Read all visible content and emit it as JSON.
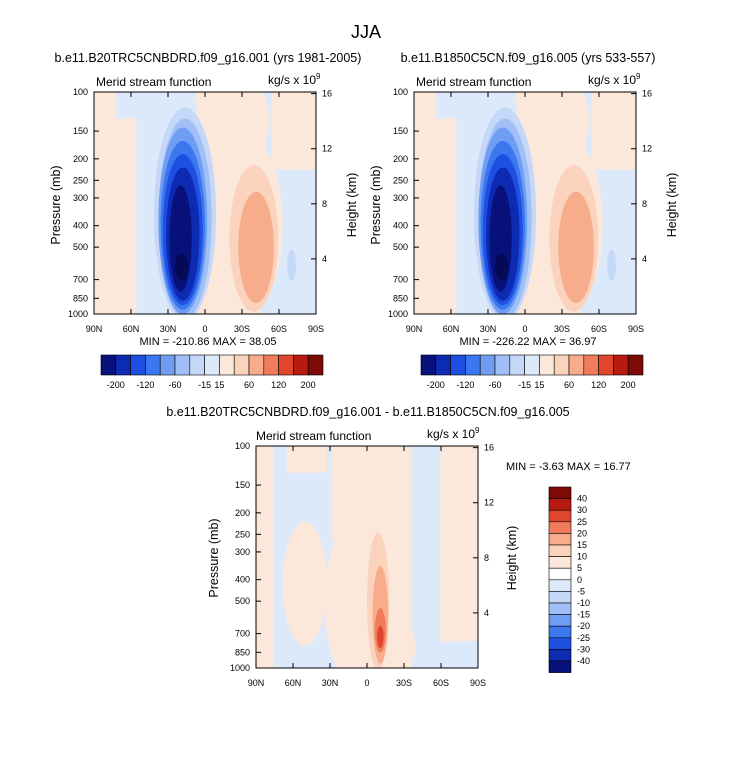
{
  "figure_title": "JJA",
  "chart_data": [
    {
      "type": "heatmap",
      "title": "b.e11.B20TRC5CNBDRD.f09_g16.001 (yrs 1981-2005)",
      "subtitle_left": "Merid stream function",
      "units_base": "kg/s x 10",
      "units_exp": "9",
      "ylabel": "Pressure (mb)",
      "ylabel_right": "Height (km)",
      "x_ticks": [
        "90N",
        "60N",
        "30N",
        "0",
        "30S",
        "60S",
        "90S"
      ],
      "y_ticks": [
        "100",
        "150",
        "200",
        "250",
        "300",
        "400",
        "500",
        "700",
        "850",
        "1000"
      ],
      "y_ticks_right": [
        "16",
        "12",
        "8",
        "4"
      ],
      "stats": "MIN = -210.86  MAX = 38.05",
      "min": -210.86,
      "max": 38.05,
      "colorbar_labels": [
        "-200",
        "-120",
        "-60",
        "-15",
        "15",
        "60",
        "120",
        "200"
      ]
    },
    {
      "type": "heatmap",
      "title": "b.e11.B1850C5CN.f09_g16.005 (yrs 533-557)",
      "subtitle_left": "Merid stream function",
      "units_base": "kg/s x 10",
      "units_exp": "9",
      "ylabel": "Pressure (mb)",
      "ylabel_right": "Height (km)",
      "x_ticks": [
        "90N",
        "60N",
        "30N",
        "0",
        "30S",
        "60S",
        "90S"
      ],
      "y_ticks": [
        "100",
        "150",
        "200",
        "250",
        "300",
        "400",
        "500",
        "700",
        "850",
        "1000"
      ],
      "y_ticks_right": [
        "16",
        "12",
        "8",
        "4"
      ],
      "stats": "MIN = -226.22  MAX = 36.97",
      "min": -226.22,
      "max": 36.97,
      "colorbar_labels": [
        "-200",
        "-120",
        "-60",
        "-15",
        "15",
        "60",
        "120",
        "200"
      ]
    },
    {
      "type": "heatmap",
      "title": "b.e11.B20TRC5CNBDRD.f09_g16.001 - b.e11.B1850C5CN.f09_g16.005",
      "subtitle_left": "Merid stream function",
      "units_base": "kg/s x 10",
      "units_exp": "9",
      "ylabel": "Pressure (mb)",
      "ylabel_right": "Height (km)",
      "x_ticks": [
        "90N",
        "60N",
        "30N",
        "0",
        "30S",
        "60S",
        "90S"
      ],
      "y_ticks": [
        "100",
        "150",
        "200",
        "250",
        "300",
        "400",
        "500",
        "700",
        "850",
        "1000"
      ],
      "y_ticks_right": [
        "16",
        "12",
        "8",
        "4"
      ],
      "stats": "MIN =  -3.63  MAX = 16.77",
      "min": -3.63,
      "max": 16.77,
      "colorbar_labels": [
        "40",
        "30",
        "25",
        "20",
        "15",
        "10",
        "5",
        "0",
        "-5",
        "-10",
        "-15",
        "-20",
        "-25",
        "-30",
        "-40"
      ]
    }
  ],
  "colors": {
    "main_scale": [
      "#08107a",
      "#0d2ab3",
      "#1e4fe0",
      "#3b78f0",
      "#6f9df4",
      "#9fbff6",
      "#c6d8f8",
      "#dce9fb",
      "#fce8db",
      "#fbd2bb",
      "#f7ac8c",
      "#f07c5c",
      "#e0452e",
      "#b81a10",
      "#7e0a06"
    ],
    "diff_scale": [
      "#7e0a06",
      "#b81a10",
      "#e0452e",
      "#f07c5c",
      "#f7ac8c",
      "#fbd2bb",
      "#fce8db",
      "#ffffff",
      "#dce9fb",
      "#c6d8f8",
      "#9fbff6",
      "#6f9df4",
      "#3b78f0",
      "#1e4fe0",
      "#0d2ab3",
      "#08107a"
    ],
    "light_blue": "#dce9fb",
    "light_orange": "#fce8db"
  }
}
